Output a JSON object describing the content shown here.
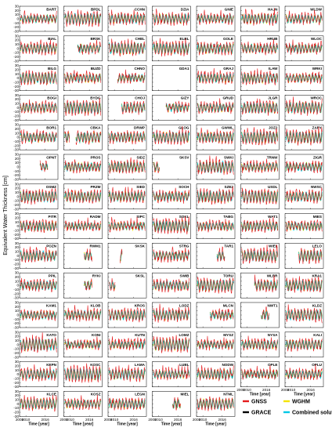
{
  "chart_data": {
    "type": "line",
    "ylabel": "Equivalent Water Thickness [cm]",
    "xlabel": "Time [year]",
    "xlim": [
      2008,
      2020
    ],
    "xticks": [
      "2008",
      "2010",
      "2016"
    ],
    "ylim": [
      -30,
      30
    ],
    "yticks": [
      "30",
      "20",
      "10",
      "0",
      "-10",
      "-20",
      "-30"
    ],
    "legend": {
      "placement": "bottom-right",
      "entries": [
        {
          "label": "GNSS",
          "color": "#e41a1c"
        },
        {
          "label": "WGHM",
          "color": "#f5e400"
        },
        {
          "label": "GRACE",
          "color": "#000000"
        },
        {
          "label": "Combined solution",
          "color": "#00c8e6"
        }
      ]
    },
    "series_colors": {
      "GNSS": "#e41a1c",
      "WGHM": "#f5e400",
      "GRACE": "#000000",
      "Combined": "#00c8e6",
      "Model": "#2ca02c"
    },
    "stations": [
      [
        "BART",
        "BPDL",
        "CCHN",
        "DZIA",
        "GNIE",
        "HAJN",
        "WLDW"
      ],
      [
        "BIAL",
        "BRSK",
        "CHEL",
        "ELBL",
        "GOLE",
        "HRUB",
        "WLOC"
      ],
      [
        "BILG",
        "BUZD",
        "CHNO",
        "GDA1",
        "GRAJ",
        "ILAW",
        "WRKI"
      ],
      [
        "BOGI",
        "BYDG",
        "CHOJ",
        "GIZY",
        "GRUD",
        "JLGR",
        "WROC"
      ],
      [
        "BOR1",
        "CBKA",
        "DRWP",
        "GLOG",
        "GWWL",
        "JOZ2",
        "ZARY"
      ],
      [
        "OPNT",
        "PROS",
        "SIDZ",
        "SKSV",
        "SWKI",
        "TRNW",
        "ZIGR"
      ],
      [
        "OSMZ",
        "PRZM",
        "SIED",
        "SOCH",
        "SZE2",
        "USDL",
        "NWSC"
      ],
      [
        "PITR",
        "RADM",
        "SIPC",
        "SOKL",
        "TABG",
        "WAT1",
        "MIES"
      ],
      [
        "POZN",
        "RWM1",
        "SKSK",
        "STRG",
        "TAR1",
        "WIEL",
        "LELO"
      ],
      [
        "PPIL",
        "RYKI",
        "SKSL",
        "SWIB",
        "TORU",
        "WLBR",
        "KRA1"
      ],
      [
        "KAM1",
        "KLOB",
        "KROS",
        "LODZ",
        "MLCN",
        "NWT1",
        "KLDZ"
      ],
      [
        "KATO",
        "KONI",
        "KUTN",
        "LOMZ",
        "MYSZ",
        "NYSA",
        "KALI"
      ],
      [
        "KEPN",
        "KOSC",
        "LAMA",
        "LUBL",
        "NODW",
        "OPLE",
        "OPLU"
      ],
      [
        "KLCE",
        "KOSZ",
        "LEGN",
        "MIEL",
        "NTML",
        "",
        ""
      ]
    ],
    "coverage": [
      [
        "full",
        "full",
        "full",
        "full",
        "full",
        "full",
        "full"
      ],
      [
        "full",
        "late",
        "full",
        "full",
        "full",
        "full",
        "full"
      ],
      [
        "full",
        "full",
        "mid",
        "none",
        "full",
        "full",
        "full"
      ],
      [
        "full",
        "full",
        "late",
        "late",
        "full",
        "full",
        "full"
      ],
      [
        "full",
        "gap",
        "full",
        "full",
        "full",
        "full",
        "full"
      ],
      [
        "short_late",
        "full",
        "full",
        "short_early",
        "full",
        "full",
        "full"
      ],
      [
        "full",
        "full",
        "full",
        "full",
        "full",
        "full",
        "full"
      ],
      [
        "full",
        "full",
        "full",
        "full",
        "full",
        "full",
        "full"
      ],
      [
        "full",
        "short_late",
        "short_mid",
        "full",
        "short_late",
        "full",
        "late"
      ],
      [
        "full",
        "short_late",
        "short_early",
        "full",
        "full",
        "late",
        "full"
      ],
      [
        "full",
        "full",
        "full",
        "full",
        "late",
        "short_late",
        "full"
      ],
      [
        "full",
        "full",
        "full",
        "full",
        "full",
        "full",
        "full"
      ],
      [
        "full",
        "full",
        "full",
        "full",
        "full",
        "full",
        "full"
      ],
      [
        "full",
        "full",
        "full",
        "short_late",
        "full",
        "",
        ""
      ]
    ],
    "notes": "Seasonal Equivalent Water Thickness time series (approx. ±15 cm annual amplitude, peaks in spring, troughs in autumn) for GNSS stations in Poland; each panel spans about 2008–2020 on x and -30 to 30 cm on y."
  }
}
